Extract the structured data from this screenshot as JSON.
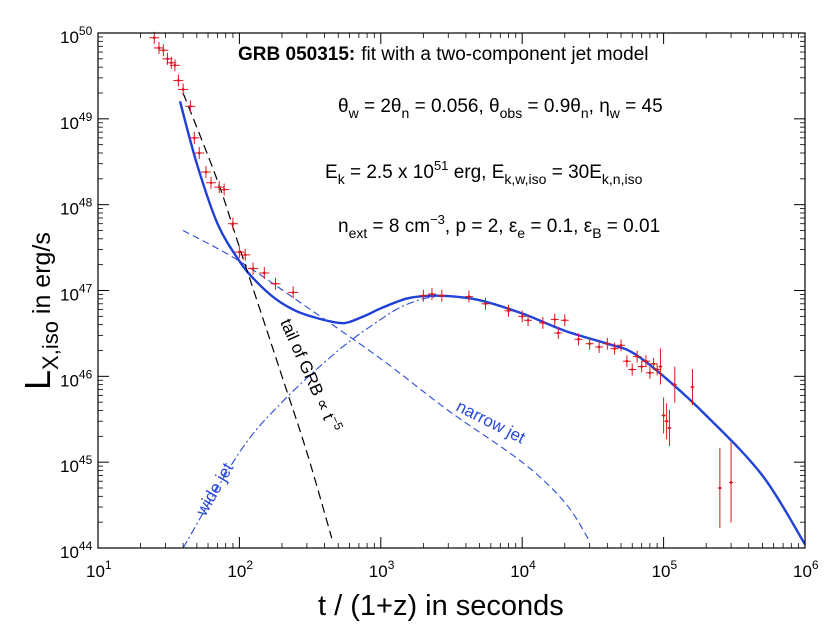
{
  "chart_data": {
    "type": "scatter",
    "title_bold": "GRB 050315:",
    "title_rest": "fit with a two-component jet model",
    "xlabel": "t / (1+z)  in  seconds",
    "ylabel": {
      "main": "L",
      "sub": "X,iso",
      "tail": "in  erg/s"
    },
    "xscale": "log",
    "yscale": "log",
    "xlim": [
      10,
      1000000
    ],
    "ylim": [
      1e+44,
      1e+50
    ],
    "x_ticks": [
      {
        "base": "10",
        "exp": "1"
      },
      {
        "base": "10",
        "exp": "2"
      },
      {
        "base": "10",
        "exp": "3"
      },
      {
        "base": "10",
        "exp": "4"
      },
      {
        "base": "10",
        "exp": "5"
      },
      {
        "base": "10",
        "exp": "6"
      }
    ],
    "y_ticks": [
      {
        "base": "10",
        "exp": "44"
      },
      {
        "base": "10",
        "exp": "45"
      },
      {
        "base": "10",
        "exp": "46"
      },
      {
        "base": "10",
        "exp": "47"
      },
      {
        "base": "10",
        "exp": "48"
      },
      {
        "base": "10",
        "exp": "49"
      },
      {
        "base": "10",
        "exp": "50"
      }
    ],
    "annotations": {
      "line1": "θw = 2θn = 0.056, θobs = 0.9θn, ηw = 45",
      "line2": "Ek = 2.5 x 10^51 erg, Ek,w,iso = 30Ek,n,iso",
      "line3": "next = 8 cm^-3, p = 2, εe = 0.1, εB = 0.01"
    },
    "curve_labels": {
      "narrow": "narrow jet",
      "wide": "wide jet",
      "tail": "tail  of  GRB ∝ t^-5"
    },
    "colors": {
      "fit": "#1f3fd6",
      "components": "#2a4bd8",
      "tail": "#000000",
      "data": "#e0141e"
    },
    "series": [
      {
        "name": "total fit",
        "style": "solid",
        "x": [
          38,
          50,
          70,
          100,
          130,
          180,
          250,
          350,
          500,
          600,
          800,
          1000,
          1500,
          2000,
          3000,
          5000,
          10000,
          20000,
          40000,
          60000,
          100000,
          200000,
          500000,
          1000000
        ],
        "y": [
          1.6e+49,
          3e+48,
          6e+47,
          2.2e+47,
          1.3e+47,
          8e+46,
          5.8e+46,
          4.8e+46,
          4.2e+46,
          4.3e+46,
          5.2e+46,
          6.2e+46,
          8e+46,
          8.6e+46,
          8.6e+46,
          7.7e+46,
          5.4e+46,
          3.4e+46,
          2.4e+46,
          1.9e+46,
          1e+46,
          3.5e+45,
          7e+44,
          1.1e+44
        ]
      },
      {
        "name": "narrow jet",
        "style": "dashed",
        "x": [
          40,
          100,
          300,
          1000,
          3000,
          10000,
          20000,
          30000
        ],
        "y": [
          5e+47,
          2.2e+47,
          6.4e+46,
          1.6e+46,
          4e+45,
          1e+45,
          3.4e+44,
          1.2e+44
        ]
      },
      {
        "name": "wide jet",
        "style": "dashdot",
        "x": [
          40,
          100,
          200,
          500,
          1000,
          1500,
          2500,
          5000,
          10000,
          20000,
          40000,
          60000,
          100000,
          200000,
          500000,
          1000000
        ],
        "y": [
          1e+44,
          1.3e+45,
          5e+45,
          2e+46,
          4.6e+46,
          6.8e+46,
          8.5e+46,
          7.7e+46,
          5.4e+46,
          3.4e+46,
          2.4e+46,
          1.9e+46,
          1e+46,
          3.5e+45,
          7e+44,
          1.1e+44
        ]
      },
      {
        "name": "GRB tail",
        "style": "dashed",
        "x": [
          40,
          70,
          100,
          200,
          300,
          450
        ],
        "y": [
          2e+49,
          1.9e+48,
          3.2e+47,
          1e+46,
          1.3e+45,
          1.3e+44
        ]
      },
      {
        "name": "observations",
        "style": "points",
        "points": [
          {
            "x": 25,
            "y": 8.8e+49
          },
          {
            "x": 27,
            "y": 6.7e+49
          },
          {
            "x": 29,
            "y": 6.3e+49
          },
          {
            "x": 31,
            "y": 5e+49
          },
          {
            "x": 33,
            "y": 4.5e+49
          },
          {
            "x": 35,
            "y": 4.2e+49
          },
          {
            "x": 37,
            "y": 2.8e+49
          },
          {
            "x": 40,
            "y": 2.2e+49
          },
          {
            "x": 45,
            "y": 1.4e+49
          },
          {
            "x": 48,
            "y": 6e+48
          },
          {
            "x": 52,
            "y": 4e+48
          },
          {
            "x": 58,
            "y": 2.4e+48
          },
          {
            "x": 63,
            "y": 1.8e+48
          },
          {
            "x": 72,
            "y": 1.6e+48
          },
          {
            "x": 78,
            "y": 1.5e+48
          },
          {
            "x": 90,
            "y": 6e+47
          },
          {
            "x": 100,
            "y": 2.8e+47
          },
          {
            "x": 110,
            "y": 2.6e+47
          },
          {
            "x": 125,
            "y": 1.8e+47
          },
          {
            "x": 150,
            "y": 1.6e+47
          },
          {
            "x": 180,
            "y": 1.2e+47
          },
          {
            "x": 240,
            "y": 9.5e+46
          },
          {
            "x": 2000,
            "y": 8.7e+46
          },
          {
            "x": 2300,
            "y": 9.1e+46
          },
          {
            "x": 2700,
            "y": 8.7e+46
          },
          {
            "x": 4200,
            "y": 8.5e+46
          },
          {
            "x": 5500,
            "y": 7e+46
          },
          {
            "x": 8000,
            "y": 5.8e+46
          },
          {
            "x": 10000,
            "y": 5e+46
          },
          {
            "x": 11000,
            "y": 4.5e+46
          },
          {
            "x": 14000,
            "y": 4.2e+46
          },
          {
            "x": 17000,
            "y": 4.6e+46
          },
          {
            "x": 18000,
            "y": 3.2e+46
          },
          {
            "x": 20000,
            "y": 4.5e+46
          },
          {
            "x": 25000,
            "y": 2.7e+46
          },
          {
            "x": 30000,
            "y": 2.4e+46
          },
          {
            "x": 35000,
            "y": 2.2e+46
          },
          {
            "x": 40000,
            "y": 2.4e+46
          },
          {
            "x": 45000,
            "y": 2.1e+46
          },
          {
            "x": 50000,
            "y": 2.3e+46
          },
          {
            "x": 55000,
            "y": 1.5e+46
          },
          {
            "x": 60000,
            "y": 1.2e+46
          },
          {
            "x": 65000,
            "y": 1.7e+46
          },
          {
            "x": 70000,
            "y": 1.3e+46
          },
          {
            "x": 75000,
            "y": 1.5e+46
          },
          {
            "x": 80000,
            "y": 1.1e+46
          },
          {
            "x": 85000,
            "y": 1.4e+46
          },
          {
            "x": 90000,
            "y": 1.2e+46
          },
          {
            "x": 95000,
            "y": 1.3e+46
          },
          {
            "x": 100000,
            "y": 3.5e+45
          },
          {
            "x": 105000,
            "y": 3e+45
          },
          {
            "x": 110000,
            "y": 2.5e+45
          },
          {
            "x": 120000,
            "y": 8e+45
          },
          {
            "x": 160000,
            "y": 7.5e+45
          },
          {
            "x": 250000,
            "y": 5e+44
          },
          {
            "x": 300000,
            "y": 5.8e+44
          }
        ]
      }
    ]
  }
}
